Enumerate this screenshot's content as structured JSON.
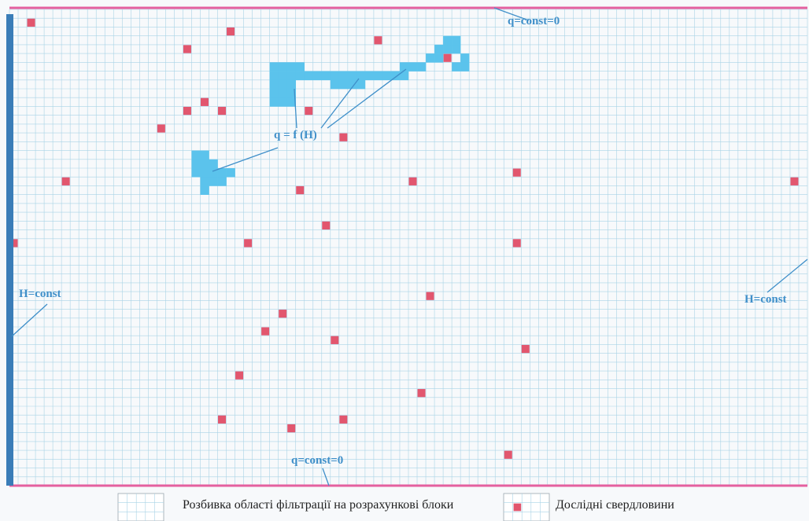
{
  "labels": {
    "top_boundary": "q=const=0",
    "bottom_boundary": "q=const=0",
    "left_boundary": "H=const",
    "right_boundary": "H=const",
    "inner_boundary": "q = f (H)"
  },
  "legend": {
    "grid_item": "Розбивка області фільтрації на розрахункові блоки",
    "well_item": "Дослідні  свердловини"
  },
  "colors": {
    "grid": "#a9d3e6",
    "well": "#e2566e",
    "boundary_flux": "#e4609f",
    "boundary_head": "#3a7db8",
    "inner_blocks": "#5bc3ec",
    "label": "#3f8fc9"
  },
  "grid": {
    "columns": 92,
    "rows": 54
  },
  "wells": [
    [
      2,
      1
    ],
    [
      25,
      2
    ],
    [
      20,
      4
    ],
    [
      42,
      3
    ],
    [
      22,
      10
    ],
    [
      20,
      11
    ],
    [
      24,
      11
    ],
    [
      34,
      11
    ],
    [
      17,
      13
    ],
    [
      38,
      14
    ],
    [
      6,
      19
    ],
    [
      33,
      20
    ],
    [
      46,
      19
    ],
    [
      58,
      18
    ],
    [
      90,
      19
    ],
    [
      0,
      26
    ],
    [
      27,
      26
    ],
    [
      58,
      26
    ],
    [
      36,
      24
    ],
    [
      48,
      32
    ],
    [
      31,
      34
    ],
    [
      29,
      36
    ],
    [
      37,
      37
    ],
    [
      59,
      38
    ],
    [
      26,
      41
    ],
    [
      47,
      43
    ],
    [
      24,
      46
    ],
    [
      32,
      47
    ],
    [
      38,
      46
    ],
    [
      57,
      50
    ],
    [
      50,
      5
    ]
  ],
  "inner_blocks": [
    [
      30,
      6
    ],
    [
      31,
      6
    ],
    [
      32,
      6
    ],
    [
      33,
      6
    ],
    [
      30,
      7
    ],
    [
      31,
      7
    ],
    [
      32,
      7
    ],
    [
      33,
      7
    ],
    [
      34,
      7
    ],
    [
      35,
      7
    ],
    [
      36,
      7
    ],
    [
      37,
      7
    ],
    [
      38,
      7
    ],
    [
      39,
      7
    ],
    [
      40,
      7
    ],
    [
      41,
      7
    ],
    [
      42,
      7
    ],
    [
      43,
      7
    ],
    [
      44,
      7
    ],
    [
      45,
      7
    ],
    [
      30,
      8
    ],
    [
      31,
      8
    ],
    [
      32,
      8
    ],
    [
      37,
      8
    ],
    [
      38,
      8
    ],
    [
      39,
      8
    ],
    [
      40,
      8
    ],
    [
      30,
      9
    ],
    [
      31,
      9
    ],
    [
      32,
      9
    ],
    [
      30,
      10
    ],
    [
      31,
      10
    ],
    [
      32,
      10
    ],
    [
      45,
      6
    ],
    [
      46,
      6
    ],
    [
      47,
      6
    ],
    [
      48,
      5
    ],
    [
      49,
      5
    ],
    [
      50,
      4
    ],
    [
      51,
      4
    ],
    [
      50,
      3
    ],
    [
      51,
      3
    ],
    [
      49,
      4
    ],
    [
      52,
      5
    ],
    [
      52,
      6
    ],
    [
      51,
      6
    ],
    [
      21,
      16
    ],
    [
      22,
      16
    ],
    [
      21,
      17
    ],
    [
      22,
      17
    ],
    [
      23,
      17
    ],
    [
      21,
      18
    ],
    [
      22,
      18
    ],
    [
      23,
      18
    ],
    [
      24,
      18
    ],
    [
      25,
      18
    ],
    [
      22,
      19
    ],
    [
      23,
      19
    ],
    [
      24,
      19
    ],
    [
      22,
      20
    ]
  ]
}
